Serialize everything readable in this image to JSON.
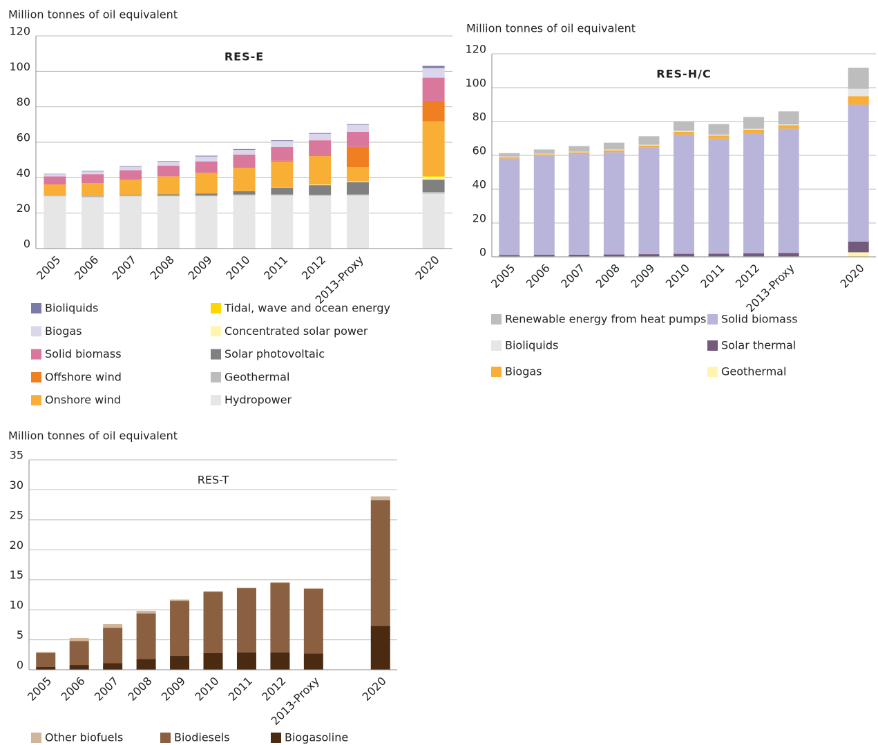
{
  "chart_data": [
    {
      "type": "bar",
      "stacked": true,
      "title": "RES-E",
      "title_bold": true,
      "y_label": "Million tonnes of oil equivalent",
      "grid": true,
      "categories": [
        "2005",
        "2006",
        "2007",
        "2008",
        "2009",
        "2010",
        "2011",
        "2012",
        "2013-Proxy",
        null,
        "2020"
      ],
      "ylim": [
        0,
        120
      ],
      "yticks": [
        0,
        20,
        40,
        60,
        80,
        100,
        120
      ],
      "series": [
        {
          "name": "Hydropower",
          "color": "#e6e6e6",
          "values": [
            29.5,
            29,
            29.5,
            29.5,
            29.5,
            30,
            30,
            29.8,
            30,
            null,
            31
          ]
        },
        {
          "name": "Geothermal",
          "color": "#bdbdbd",
          "values": [
            0.5,
            0.5,
            0.5,
            0.5,
            0.5,
            0.5,
            0.5,
            0.5,
            0.5,
            null,
            0.9
          ]
        },
        {
          "name": "Solar photovoltaic",
          "color": "#808080",
          "values": [
            0.1,
            0.1,
            0.3,
            0.6,
            1.1,
            1.9,
            3.9,
            5.5,
            7,
            null,
            7
          ]
        },
        {
          "name": "Concentrated solar power",
          "color": "#fff5b0",
          "values": [
            0,
            0,
            0,
            0,
            0,
            0.05,
            0.1,
            0.3,
            0.4,
            null,
            1.5
          ]
        },
        {
          "name": "Tidal, wave and ocean energy",
          "color": "#ffd700",
          "values": [
            0,
            0,
            0,
            0,
            0,
            0,
            0,
            0,
            0,
            null,
            0.5
          ]
        },
        {
          "name": "Onshore wind",
          "color": "#f9ae36",
          "values": [
            6,
            7.3,
            8.5,
            10,
            11.5,
            13,
            14.5,
            16,
            8,
            null,
            31
          ]
        },
        {
          "name": "Offshore wind",
          "color": "#f07f22",
          "values": [
            0.1,
            0.1,
            0.1,
            0.2,
            0.3,
            0.3,
            0.6,
            0.8,
            11.5,
            null,
            11.5
          ]
        },
        {
          "name": "Solid biomass",
          "color": "#d9779c",
          "values": [
            4.5,
            5,
            5.3,
            6,
            6.3,
            7.3,
            7.7,
            8.2,
            8.5,
            null,
            13
          ]
        },
        {
          "name": "Biogas",
          "color": "#dcd6ec",
          "values": [
            1.3,
            1.5,
            2,
            2.3,
            2.8,
            2.7,
            3.4,
            3.7,
            4,
            null,
            5.5
          ]
        },
        {
          "name": "Bioliquids",
          "color": "#7b7ba8",
          "values": [
            0.2,
            0.3,
            0.3,
            0.3,
            0.4,
            0.4,
            0.4,
            0.4,
            0.3,
            null,
            1.2
          ]
        }
      ]
    },
    {
      "type": "bar",
      "stacked": true,
      "title": "RES-H/C",
      "title_bold": true,
      "y_label": "Million tonnes of oil equivalent",
      "grid": true,
      "categories": [
        "2005",
        "2006",
        "2007",
        "2008",
        "2009",
        "2010",
        "2011",
        "2012",
        "2013-Proxy",
        null,
        "2020"
      ],
      "ylim": [
        0,
        120
      ],
      "yticks": [
        0,
        20,
        40,
        60,
        80,
        100,
        120
      ],
      "series": [
        {
          "name": "Geothermal",
          "color": "#fff5b0",
          "values": [
            0.3,
            0.3,
            0.3,
            0.3,
            0.3,
            0.3,
            0.3,
            0.3,
            0.3,
            null,
            2.7
          ]
        },
        {
          "name": "Solar thermal",
          "color": "#735a7d",
          "values": [
            0.8,
            0.9,
            1,
            1.1,
            1.3,
            1.5,
            1.6,
            1.8,
            2,
            null,
            6.3
          ]
        },
        {
          "name": "Solid biomass",
          "color": "#b8b4da",
          "values": [
            57,
            58.5,
            59.5,
            60.5,
            63,
            70.5,
            68,
            71,
            73.5,
            null,
            81
          ]
        },
        {
          "name": "Biogas",
          "color": "#f9ae36",
          "values": [
            0.8,
            0.9,
            1,
            1.1,
            1.2,
            1.6,
            1.8,
            2,
            2,
            null,
            5
          ]
        },
        {
          "name": "Bioliquids",
          "color": "#e6e6e6",
          "values": [
            0.4,
            0.4,
            0.4,
            0.5,
            0.5,
            0.6,
            0.6,
            0.6,
            0.5,
            null,
            4.3
          ]
        },
        {
          "name": "Renewable energy from heat pumps",
          "color": "#bdbdbd",
          "values": [
            2,
            2.5,
            3.3,
            4,
            5,
            5.5,
            6.2,
            7,
            7.7,
            null,
            12.5
          ]
        }
      ]
    },
    {
      "type": "bar",
      "stacked": true,
      "title": "RES-T",
      "title_bold": false,
      "y_label": "Million tonnes of oil equivalent",
      "grid": true,
      "categories": [
        "2005",
        "2006",
        "2007",
        "2008",
        "2009",
        "2010",
        "2011",
        "2012",
        "2013-Proxy",
        null,
        "2020"
      ],
      "ylim": [
        0,
        35
      ],
      "yticks": [
        0,
        5,
        10,
        15,
        20,
        25,
        30,
        35
      ],
      "series": [
        {
          "name": "Biogasoline",
          "color": "#4a2b12",
          "values": [
            0.5,
            0.8,
            1.1,
            1.8,
            2.3,
            2.8,
            2.9,
            2.9,
            2.7,
            null,
            7.3
          ]
        },
        {
          "name": "Biodiesels",
          "color": "#8a6040",
          "values": [
            2.3,
            4,
            5.9,
            7.6,
            9.2,
            10.2,
            10.7,
            11.6,
            10.8,
            null,
            21
          ]
        },
        {
          "name": "Other biofuels",
          "color": "#d1b59a",
          "values": [
            0.2,
            0.5,
            0.6,
            0.4,
            0.2,
            0.1,
            0.1,
            0.1,
            0.1,
            null,
            0.6
          ]
        }
      ]
    }
  ]
}
